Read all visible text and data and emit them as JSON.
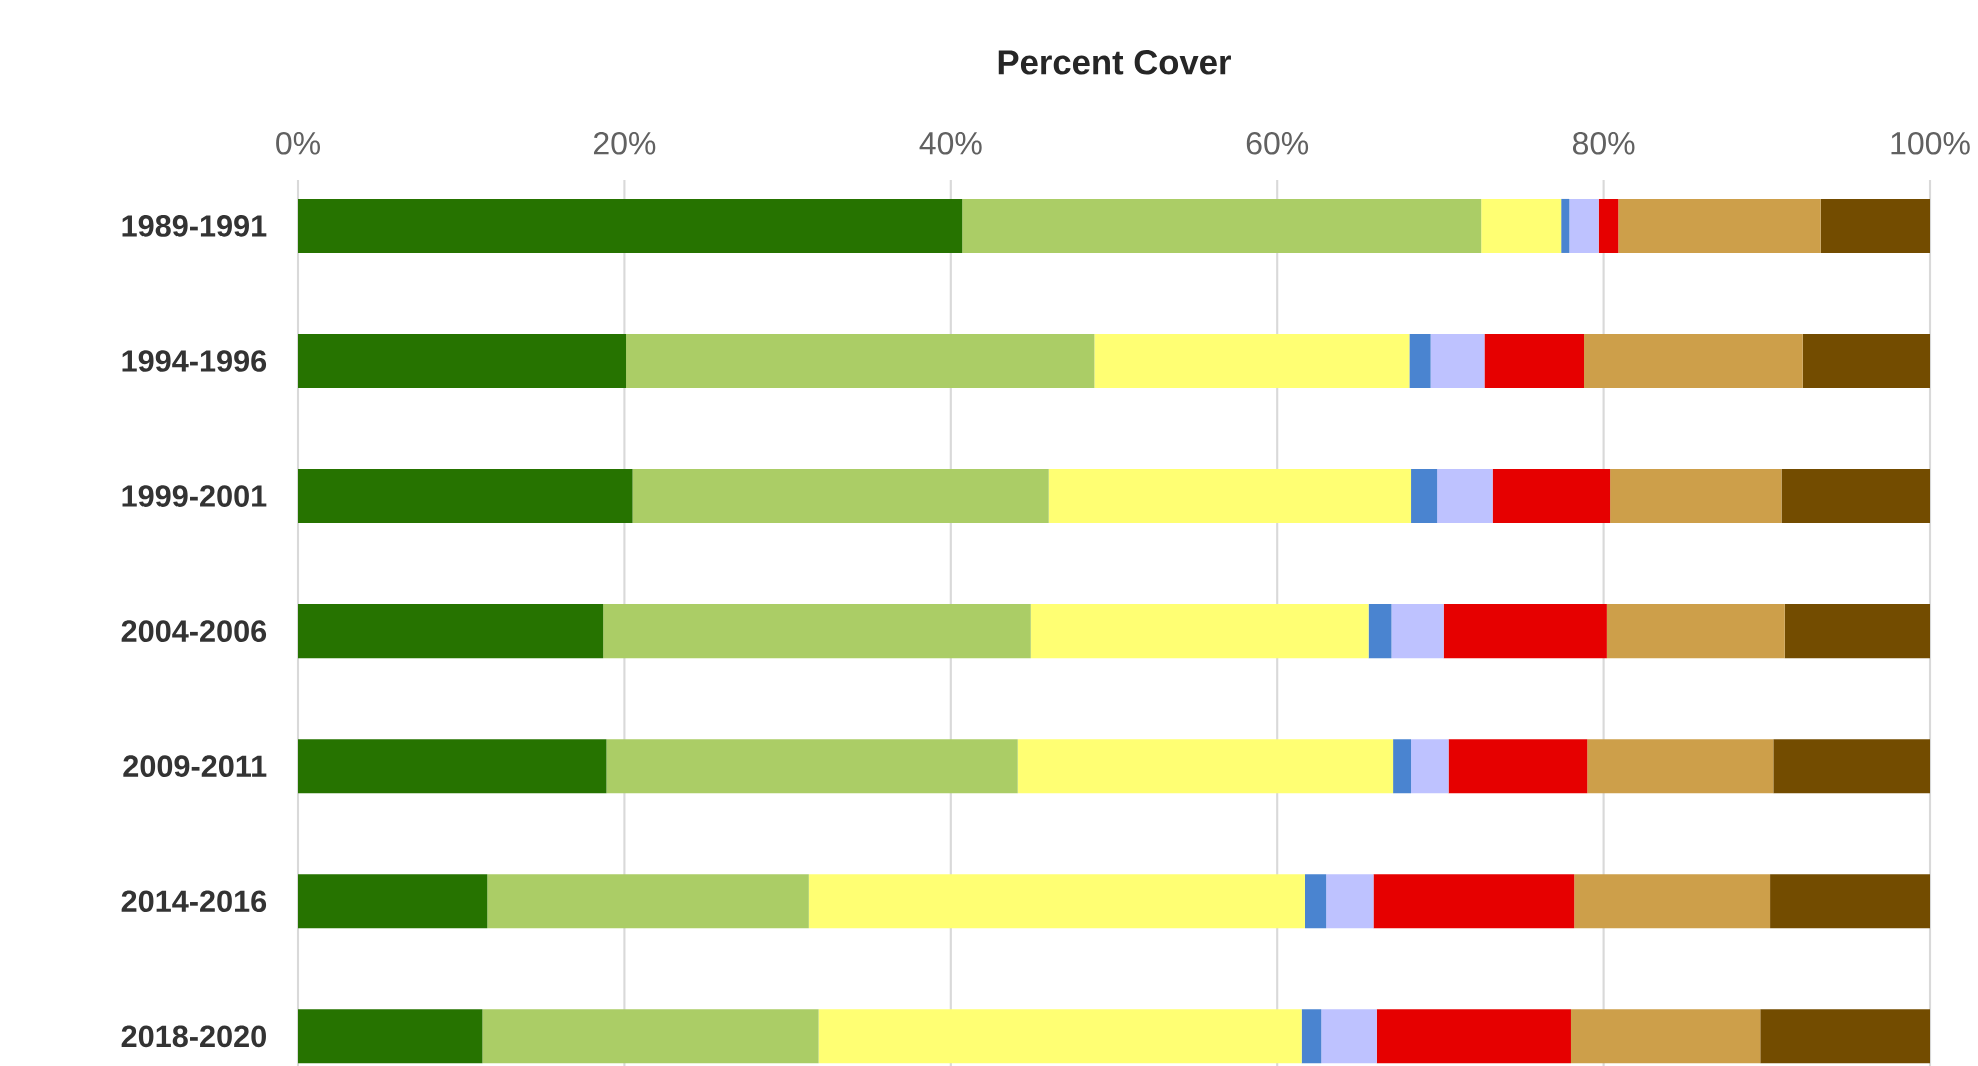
{
  "chart_data": {
    "type": "bar",
    "orientation": "horizontal",
    "stacked": true,
    "title": "Percent Cover",
    "categories": [
      "1989-1991",
      "1994-1996",
      "1999-2001",
      "2004-2006",
      "2009-2011",
      "2014-2016",
      "2018-2020"
    ],
    "xlim": [
      0,
      100
    ],
    "xticks": [
      {
        "value": 0,
        "label": "0%"
      },
      {
        "value": 20,
        "label": "20%"
      },
      {
        "value": 40,
        "label": "40%"
      },
      {
        "value": 60,
        "label": "60%"
      },
      {
        "value": 80,
        "label": "80%"
      },
      {
        "value": 100,
        "label": "100%"
      }
    ],
    "grid": "x",
    "series": [
      {
        "color": "#267300",
        "values": [
          40.7,
          20.1,
          20.5,
          18.7,
          18.9,
          11.6,
          11.3
        ]
      },
      {
        "color": "#abcd66",
        "values": [
          31.8,
          28.7,
          25.5,
          26.2,
          25.2,
          19.7,
          20.6
        ]
      },
      {
        "color": "#ffff73",
        "values": [
          4.9,
          19.3,
          22.2,
          20.7,
          23.0,
          30.4,
          29.6
        ]
      },
      {
        "color": "#4a84d0",
        "values": [
          0.5,
          1.3,
          1.6,
          1.4,
          1.1,
          1.3,
          1.2
        ]
      },
      {
        "color": "#bec2ff",
        "values": [
          1.8,
          3.3,
          3.4,
          3.2,
          2.3,
          2.9,
          3.4
        ]
      },
      {
        "color": "#e60000",
        "values": [
          1.2,
          6.1,
          7.2,
          10.0,
          8.5,
          12.3,
          11.9
        ]
      },
      {
        "color": "#cd9f4a",
        "values": [
          12.4,
          13.4,
          10.5,
          10.9,
          11.4,
          12.0,
          11.6
        ]
      },
      {
        "color": "#734c00",
        "values": [
          6.7,
          7.8,
          9.1,
          8.9,
          9.6,
          9.8,
          10.4
        ]
      }
    ]
  }
}
